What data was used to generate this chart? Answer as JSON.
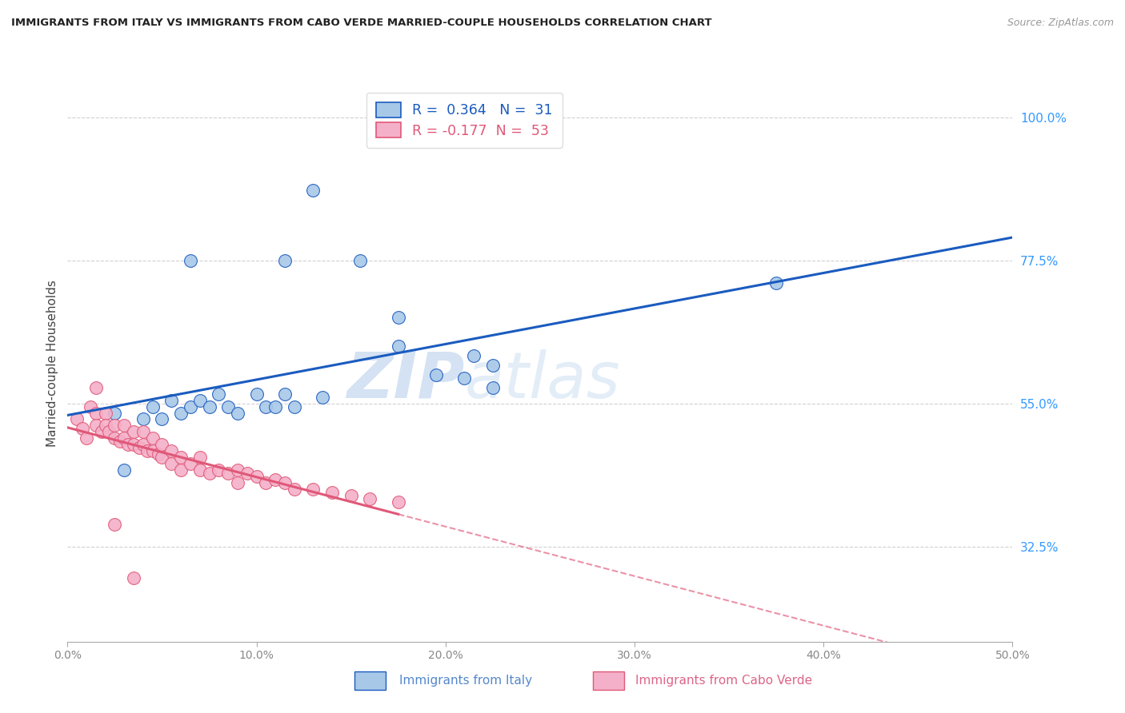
{
  "title": "IMMIGRANTS FROM ITALY VS IMMIGRANTS FROM CABO VERDE MARRIED-COUPLE HOUSEHOLDS CORRELATION CHART",
  "source": "Source: ZipAtlas.com",
  "ylabel": "Married-couple Households",
  "xlabel_italy": "Immigrants from Italy",
  "xlabel_caboverde": "Immigrants from Cabo Verde",
  "xlim": [
    0.0,
    0.5
  ],
  "ylim": [
    0.175,
    1.05
  ],
  "yticks": [
    0.325,
    0.55,
    0.775,
    1.0
  ],
  "ytick_labels": [
    "32.5%",
    "55.0%",
    "77.5%",
    "100.0%"
  ],
  "xticks": [
    0.0,
    0.1,
    0.2,
    0.3,
    0.4,
    0.5
  ],
  "xtick_labels": [
    "0.0%",
    "10.0%",
    "20.0%",
    "30.0%",
    "40.0%",
    "50.0%"
  ],
  "R_italy": 0.364,
  "N_italy": 31,
  "R_caboverde": -0.177,
  "N_caboverde": 53,
  "italy_color": "#a8c8e8",
  "caboverde_color": "#f4b0c8",
  "italy_line_color": "#1a5bbf",
  "caboverde_line_color": "#e05878",
  "watermark_zip": "ZIP",
  "watermark_atlas": "atlas",
  "italy_scatter_x": [
    0.155,
    0.065,
    0.115,
    0.175,
    0.175,
    0.195,
    0.21,
    0.215,
    0.225,
    0.225,
    0.025,
    0.04,
    0.045,
    0.05,
    0.055,
    0.06,
    0.065,
    0.07,
    0.075,
    0.08,
    0.085,
    0.09,
    0.1,
    0.105,
    0.11,
    0.115,
    0.12,
    0.135,
    0.375,
    0.13,
    0.03
  ],
  "italy_scatter_y": [
    0.775,
    0.775,
    0.775,
    0.685,
    0.64,
    0.595,
    0.59,
    0.625,
    0.61,
    0.575,
    0.535,
    0.525,
    0.545,
    0.525,
    0.555,
    0.535,
    0.545,
    0.555,
    0.545,
    0.565,
    0.545,
    0.535,
    0.565,
    0.545,
    0.545,
    0.565,
    0.545,
    0.56,
    0.74,
    0.885,
    0.445
  ],
  "caboverde_scatter_x": [
    0.005,
    0.008,
    0.01,
    0.012,
    0.015,
    0.015,
    0.018,
    0.02,
    0.02,
    0.022,
    0.025,
    0.025,
    0.028,
    0.03,
    0.03,
    0.032,
    0.035,
    0.035,
    0.038,
    0.04,
    0.04,
    0.042,
    0.045,
    0.045,
    0.048,
    0.05,
    0.05,
    0.055,
    0.055,
    0.06,
    0.06,
    0.065,
    0.07,
    0.07,
    0.075,
    0.08,
    0.085,
    0.09,
    0.09,
    0.095,
    0.1,
    0.105,
    0.11,
    0.115,
    0.12,
    0.13,
    0.14,
    0.15,
    0.16,
    0.175,
    0.015,
    0.025,
    0.035
  ],
  "caboverde_scatter_y": [
    0.525,
    0.51,
    0.495,
    0.545,
    0.535,
    0.515,
    0.505,
    0.535,
    0.515,
    0.505,
    0.515,
    0.495,
    0.49,
    0.515,
    0.495,
    0.485,
    0.505,
    0.485,
    0.48,
    0.505,
    0.485,
    0.475,
    0.495,
    0.475,
    0.47,
    0.485,
    0.465,
    0.475,
    0.455,
    0.465,
    0.445,
    0.455,
    0.465,
    0.445,
    0.44,
    0.445,
    0.44,
    0.445,
    0.425,
    0.44,
    0.435,
    0.425,
    0.43,
    0.425,
    0.415,
    0.415,
    0.41,
    0.405,
    0.4,
    0.395,
    0.575,
    0.36,
    0.275
  ],
  "italy_line_x_start": 0.0,
  "italy_line_x_end": 0.5,
  "caboverde_line_solid_end": 0.175,
  "caboverde_line_dash_end": 0.5
}
